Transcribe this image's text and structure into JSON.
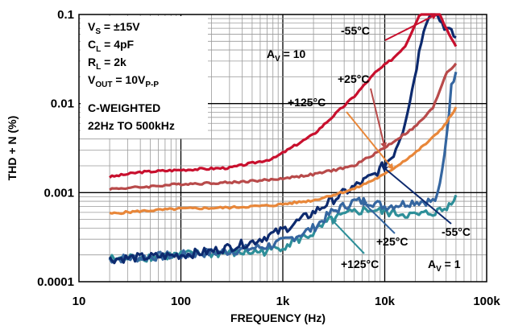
{
  "chart_data": {
    "type": "line",
    "xlabel": "FREQUENCY (Hz)",
    "ylabel": "THD + N (%)",
    "xscale": "log",
    "yscale": "log",
    "xlim": [
      10,
      100000
    ],
    "ylim": [
      0.0001,
      0.1
    ],
    "grid": true,
    "x_tick_labels": [
      "10",
      "100",
      "1k",
      "10k",
      "100k"
    ],
    "y_tick_labels": [
      "0.0001",
      "0.001",
      "0.01",
      "0.1"
    ],
    "conditions": {
      "line1": {
        "main": "V",
        "sub": "S",
        "rest": " = ±15V"
      },
      "line2": {
        "main": "C",
        "sub": "L",
        "rest": " = 4pF"
      },
      "line3": {
        "main": "R",
        "sub": "L",
        "rest": " = 2k"
      },
      "line4": {
        "main": "V",
        "sub": "OUT",
        "rest": " = 10V",
        "sub2": "P-P"
      },
      "line5": "C-WEIGHTED",
      "line6": "22Hz TO 500kHz"
    },
    "gain_labels": {
      "high": {
        "main": "A",
        "sub": "V",
        "rest": " = 10"
      },
      "low": {
        "main": "A",
        "sub": "V",
        "rest": " = 1"
      }
    },
    "series": [
      {
        "name": "-55°C",
        "gain": "10",
        "color": "#c8102e",
        "x": [
          20,
          40,
          100,
          300,
          800,
          2000,
          5000,
          8000,
          12000,
          16000,
          19000,
          22000,
          25000,
          30000,
          35000,
          40000,
          50000
        ],
        "y": [
          0.0015,
          0.0017,
          0.0018,
          0.0019,
          0.0024,
          0.0045,
          0.012,
          0.022,
          0.032,
          0.045,
          0.07,
          0.1,
          0.1,
          0.1,
          0.1,
          0.07,
          0.045
        ]
      },
      {
        "name": "+25°C",
        "gain": "10",
        "color": "#b84a4a",
        "x": [
          20,
          40,
          100,
          300,
          800,
          2000,
          5000,
          10000,
          20000,
          30000,
          40000,
          50000
        ],
        "y": [
          0.0011,
          0.00115,
          0.00125,
          0.0013,
          0.0014,
          0.0016,
          0.002,
          0.0032,
          0.0055,
          0.009,
          0.022,
          0.028
        ]
      },
      {
        "name": "+125°C",
        "gain": "10",
        "color": "#e8873a",
        "x": [
          20,
          40,
          100,
          300,
          800,
          2000,
          5000,
          10000,
          20000,
          30000,
          40000,
          50000
        ],
        "y": [
          0.00058,
          0.00062,
          0.00066,
          0.00068,
          0.00072,
          0.00082,
          0.0011,
          0.0016,
          0.0028,
          0.0042,
          0.006,
          0.009
        ]
      },
      {
        "name": "-55°C",
        "gain": "1",
        "color": "#0d2a6e",
        "x": [
          20,
          50,
          100,
          200,
          500,
          1000,
          2000,
          4000,
          8000,
          12000,
          15000,
          18000,
          21000,
          24000,
          27000,
          32000,
          40000,
          50000
        ],
        "y": [
          0.00018,
          0.00019,
          0.0002,
          0.00022,
          0.00028,
          0.00038,
          0.0006,
          0.001,
          0.0016,
          0.0026,
          0.005,
          0.012,
          0.03,
          0.07,
          0.1,
          0.1,
          0.07,
          0.055
        ]
      },
      {
        "name": "+25°C",
        "gain": "1",
        "color": "#3566a0",
        "x": [
          20,
          50,
          100,
          300,
          700,
          1000,
          2000,
          3000,
          5000,
          7000,
          10000,
          15000,
          20000,
          25000,
          30000,
          33000,
          36000,
          40000,
          45000,
          50000
        ],
        "y": [
          0.00018,
          0.00019,
          0.0002,
          0.00022,
          0.00025,
          0.00028,
          0.0004,
          0.0006,
          0.0008,
          0.0008,
          0.0007,
          0.00075,
          0.0008,
          0.0008,
          0.0008,
          0.0009,
          0.0015,
          0.004,
          0.015,
          0.025
        ]
      },
      {
        "name": "+125°C",
        "gain": "1",
        "color": "#2e8f99",
        "x": [
          20,
          50,
          100,
          300,
          700,
          1000,
          2000,
          3000,
          5000,
          7000,
          10000,
          15000,
          20000,
          30000,
          40000,
          45000,
          50000
        ],
        "y": [
          0.00018,
          0.00019,
          0.0002,
          0.00021,
          0.00022,
          0.00025,
          0.00035,
          0.0005,
          0.0006,
          0.00065,
          0.0006,
          0.00058,
          0.00055,
          0.0006,
          0.00065,
          0.0008,
          0.001
        ]
      }
    ],
    "annotations": [
      {
        "text": "-55°C",
        "target_series": 0
      },
      {
        "text": "+25°C",
        "target_series": 1
      },
      {
        "text": "+125°C",
        "target_series": 2
      },
      {
        "text": "-55°C",
        "target_series": 3
      },
      {
        "text": "+25°C",
        "target_series": 4
      },
      {
        "text": "+125°C",
        "target_series": 5
      }
    ]
  }
}
